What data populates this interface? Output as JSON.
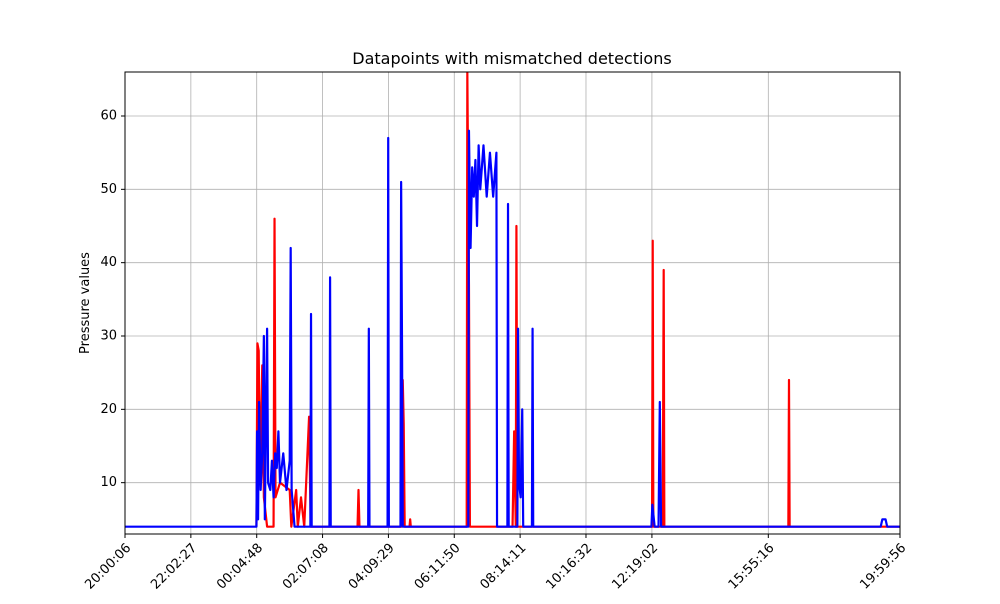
{
  "chart_data": {
    "type": "line",
    "title": "Datapoints with mismatched detections",
    "y_label": "Pressure values",
    "xlim": [
      0,
      23.99722
    ],
    "xticks": [
      {
        "value": 0,
        "label": "20:00:06"
      },
      {
        "value": 2.03917,
        "label": "22:02:27"
      },
      {
        "value": 4.07833,
        "label": "00:04:48"
      },
      {
        "value": 6.11722,
        "label": "02:07:08"
      },
      {
        "value": 8.15639,
        "label": "04:09:29"
      },
      {
        "value": 10.19556,
        "label": "06:11:50"
      },
      {
        "value": 12.23472,
        "label": "08:14:11"
      },
      {
        "value": 14.27389,
        "label": "10:16:32"
      },
      {
        "value": 16.31556,
        "label": "12:19:02"
      },
      {
        "value": 19.91944,
        "label": "15:55:16"
      },
      {
        "value": 23.99722,
        "label": "19:59:56"
      }
    ],
    "ylim": [
      3,
      66
    ],
    "yticks": [
      10,
      20,
      30,
      40,
      50,
      60
    ],
    "grid": true,
    "series": [
      {
        "color": "#ff0000",
        "x": [
          4.07,
          4.1,
          4.14,
          4.18,
          4.25,
          4.3,
          4.4,
          4.6,
          4.63,
          4.66,
          4.8,
          5.1,
          5.15,
          5.3,
          5.35,
          5.45,
          5.55,
          5.7,
          5.75,
          7.2,
          7.23,
          7.26,
          8.57,
          8.6,
          8.63,
          8.66,
          8.81,
          8.83,
          8.85,
          10.58,
          10.6,
          10.65,
          10.68,
          12.0,
          12.05,
          12.1,
          12.12,
          12.15,
          16.32,
          16.34,
          16.36,
          16.65,
          16.68,
          16.7,
          20.54,
          20.56,
          20.58,
          23.997
        ],
        "values": [
          4,
          29,
          28,
          10,
          26,
          8,
          4,
          4,
          46,
          8,
          10,
          9,
          4,
          9,
          4,
          8,
          4,
          19,
          4,
          4,
          9,
          4,
          4,
          24,
          18,
          4,
          4,
          5,
          4,
          4,
          66,
          37,
          4,
          4,
          17,
          4,
          45,
          4,
          4,
          43,
          4,
          4,
          39,
          4,
          4,
          24,
          4,
          4
        ]
      },
      {
        "color": "#0000ff",
        "x": [
          0,
          4.07,
          4.09,
          4.12,
          4.15,
          4.2,
          4.25,
          4.3,
          4.33,
          4.37,
          4.4,
          4.43,
          4.5,
          4.55,
          4.6,
          4.65,
          4.7,
          4.75,
          4.8,
          4.9,
          5.0,
          5.1,
          5.13,
          5.16,
          5.25,
          5.74,
          5.76,
          5.78,
          6.33,
          6.35,
          6.37,
          7.53,
          7.55,
          7.57,
          8.13,
          8.15,
          8.17,
          8.53,
          8.55,
          8.58,
          8.6,
          10.63,
          10.65,
          10.7,
          10.75,
          10.8,
          10.85,
          10.9,
          10.95,
          11.0,
          11.1,
          11.2,
          11.3,
          11.4,
          11.5,
          11.52,
          11.84,
          11.86,
          11.88,
          12.15,
          12.17,
          12.2,
          12.25,
          12.3,
          12.33,
          12.6,
          12.62,
          12.64,
          16.3,
          16.33,
          16.4,
          16.52,
          16.56,
          16.6,
          23.4,
          23.45,
          23.55,
          23.6,
          23.997
        ],
        "values": [
          4,
          4,
          17,
          5,
          21,
          9,
          14,
          30,
          5,
          21,
          31,
          10,
          9,
          13,
          8,
          14,
          12,
          17,
          10,
          14,
          9,
          13,
          42,
          9,
          4,
          4,
          33,
          4,
          4,
          38,
          4,
          4,
          31,
          4,
          4,
          57,
          4,
          4,
          51,
          27,
          4,
          4,
          58,
          42,
          53,
          49,
          54,
          45,
          56,
          50,
          56,
          49,
          55,
          49,
          55,
          4,
          4,
          48,
          4,
          4,
          31,
          10,
          8,
          20,
          4,
          4,
          31,
          4,
          4,
          7,
          4,
          4,
          21,
          4,
          4,
          5,
          5,
          4,
          4
        ]
      }
    ]
  }
}
